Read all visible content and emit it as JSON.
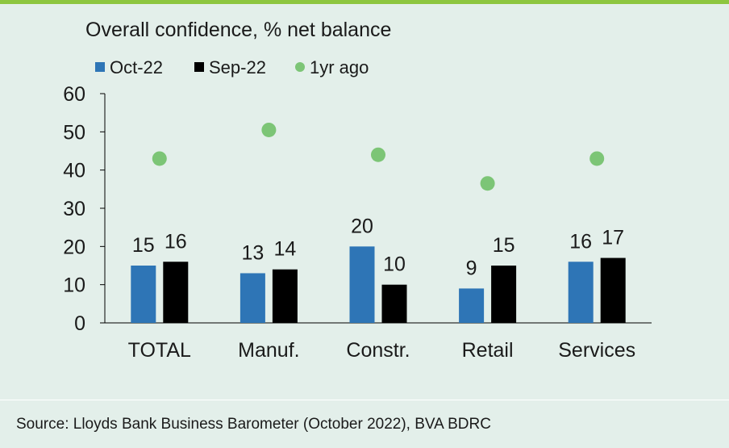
{
  "chart_data": {
    "type": "bar",
    "title": "Overall confidence, % net balance",
    "categories": [
      "TOTAL",
      "Manuf.",
      "Constr.",
      "Retail",
      "Services"
    ],
    "series": [
      {
        "name": "Oct-22",
        "kind": "bar",
        "color": "#2e75b6",
        "values": [
          15,
          13,
          20,
          9,
          16
        ]
      },
      {
        "name": "Sep-22",
        "kind": "bar",
        "color": "#000000",
        "values": [
          16,
          14,
          10,
          15,
          17
        ]
      },
      {
        "name": "1yr ago",
        "kind": "scatter",
        "color": "#7cc576",
        "values": [
          43,
          50.5,
          44,
          36.5,
          43
        ]
      }
    ],
    "ylim": [
      0,
      60
    ],
    "yticks": [
      0,
      10,
      20,
      30,
      40,
      50,
      60
    ],
    "grid": false,
    "legend": "top-left"
  },
  "source": "Source: Lloyds Bank Business Barometer (October 2022), BVA BDRC"
}
